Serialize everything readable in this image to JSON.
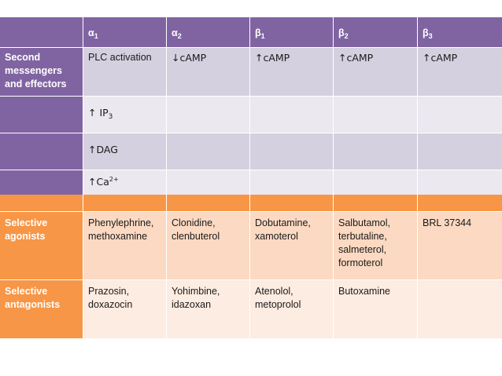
{
  "table1": {
    "headers": [
      {
        "base": "α",
        "sub": "1"
      },
      {
        "base": "α",
        "sub": "2"
      },
      {
        "base": "β",
        "sub": "1"
      },
      {
        "base": "β",
        "sub": "2"
      },
      {
        "base": "β",
        "sub": "3"
      }
    ],
    "row_label": "Second messengers and effectors",
    "rows": [
      [
        "PLC activation",
        "↓cAMP",
        "↑cAMP",
        "↑cAMP",
        "↑cAMP"
      ],
      [
        {
          "base": "↑ IP",
          "sub": "3"
        },
        "",
        "",
        "",
        ""
      ],
      [
        "↑DAG",
        "",
        "",
        "",
        ""
      ],
      [
        {
          "base": "↑Ca",
          "sup": "2+"
        },
        "",
        "",
        "",
        ""
      ]
    ],
    "colors": {
      "header": "#8064a2",
      "row_dark": "#d5d0df",
      "row_light": "#ebe8f0"
    }
  },
  "table2": {
    "rows": [
      {
        "label": "Selective agonists",
        "cells": [
          "Phenylephrine, methoxamine",
          "Clonidine, clenbuterol",
          "Dobutamine, xamoterol",
          "Salbutamol, terbutaline, salmeterol, formoterol",
          "BRL 37344"
        ]
      },
      {
        "label": "Selective antagonists",
        "cells": [
          "Prazosin, doxazocin",
          "Yohimbine, idazoxan",
          "Atenolol, metoprolol",
          "Butoxamine",
          ""
        ]
      }
    ],
    "colors": {
      "header": "#f79646",
      "row_dark": "#fcd9c2",
      "row_light": "#fdece1"
    }
  }
}
